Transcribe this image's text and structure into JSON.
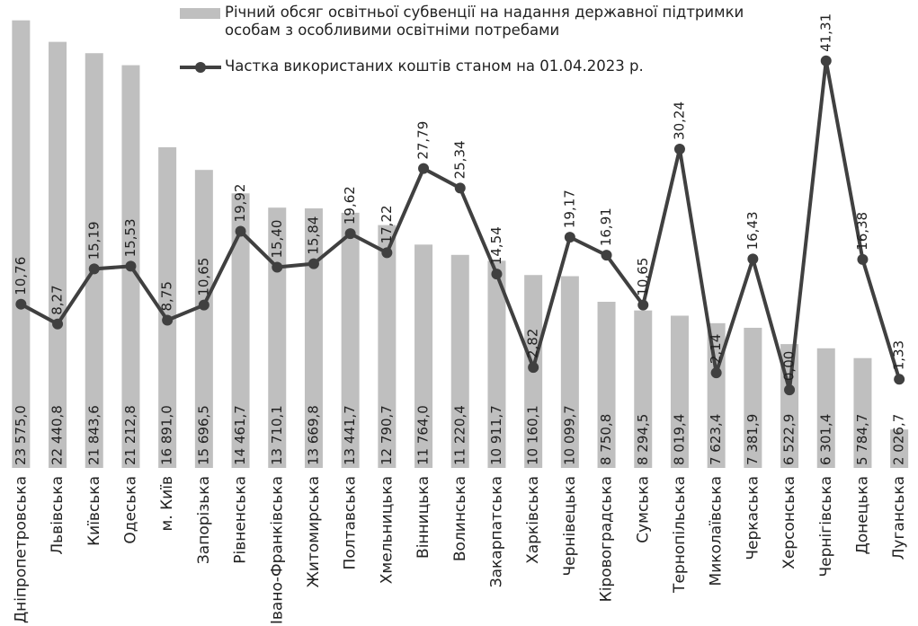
{
  "chart_data": {
    "type": "bar-line",
    "categories": [
      "Дніпропетровська",
      "Львівська",
      "Київська",
      "Одеська",
      "м. Київ",
      "Запорізька",
      "Рівненська",
      "Івано-Франківська",
      "Житомирська",
      "Полтавська",
      "Хмельницька",
      "Вінницька",
      "Волинська",
      "Закарпатська",
      "Харківська",
      "Чернівецька",
      "Кіровоградська",
      "Сумська",
      "Тернопільська",
      "Миколаївська",
      "Черкаська",
      "Херсонська",
      "Чернігівська",
      "Донецька",
      "Луганська"
    ],
    "series": [
      {
        "name": "Річний обсяг освітньої субвенції на надання державної підтримки особам з особливими освітніми потребами",
        "type": "bar",
        "color": "#bfbfbf",
        "values": [
          23575.0,
          22440.8,
          21843.6,
          21212.8,
          16891.0,
          15696.5,
          14461.7,
          13710.1,
          13669.8,
          13441.7,
          12790.7,
          11764.0,
          11220.4,
          10911.7,
          10160.1,
          10099.7,
          8750.8,
          8294.5,
          8019.4,
          7623.4,
          7381.9,
          6522.9,
          6301.4,
          5784.7,
          2026.7
        ],
        "value_labels": [
          "23 575,0",
          "22 440,8",
          "21 843,6",
          "21 212,8",
          "16 891,0",
          "15 696,5",
          "14 461,7",
          "13 710,1",
          "13 669,8",
          "13 441,7",
          "12 790,7",
          "11 764,0",
          "11 220,4",
          "10 911,7",
          "10 160,1",
          "10 099,7",
          "8 750,8",
          "8 294,5",
          "8 019,4",
          "7 623,4",
          "7 381,9",
          "6 522,9",
          "6 301,4",
          "5 784,7",
          "2 026,7"
        ]
      },
      {
        "name": "Частка використаних коштів станом на 01.04.2023 р.",
        "type": "line",
        "axis": "y2",
        "color": "#404040",
        "values": [
          10.76,
          8.27,
          15.19,
          15.53,
          8.75,
          10.65,
          19.92,
          15.4,
          15.84,
          19.62,
          17.22,
          27.79,
          25.34,
          14.54,
          2.82,
          19.17,
          16.91,
          10.65,
          30.24,
          2.14,
          16.43,
          0.0,
          41.31,
          16.38,
          1.33
        ],
        "value_labels": [
          "10,76",
          "8,27",
          "15,19",
          "15,53",
          "8,75",
          "10,65",
          "19,92",
          "15,40",
          "15,84",
          "19,62",
          "17,22",
          "27,79",
          "25,34",
          "14,54",
          "2,82",
          "19,17",
          "16,91",
          "10,65",
          "30,24",
          "2,14",
          "16,43",
          "0,00",
          "41,31",
          "16,38",
          "1,33"
        ]
      }
    ],
    "ylim": [
      0,
      23700
    ],
    "y2lim": [
      -9.8,
      46.7
    ]
  }
}
